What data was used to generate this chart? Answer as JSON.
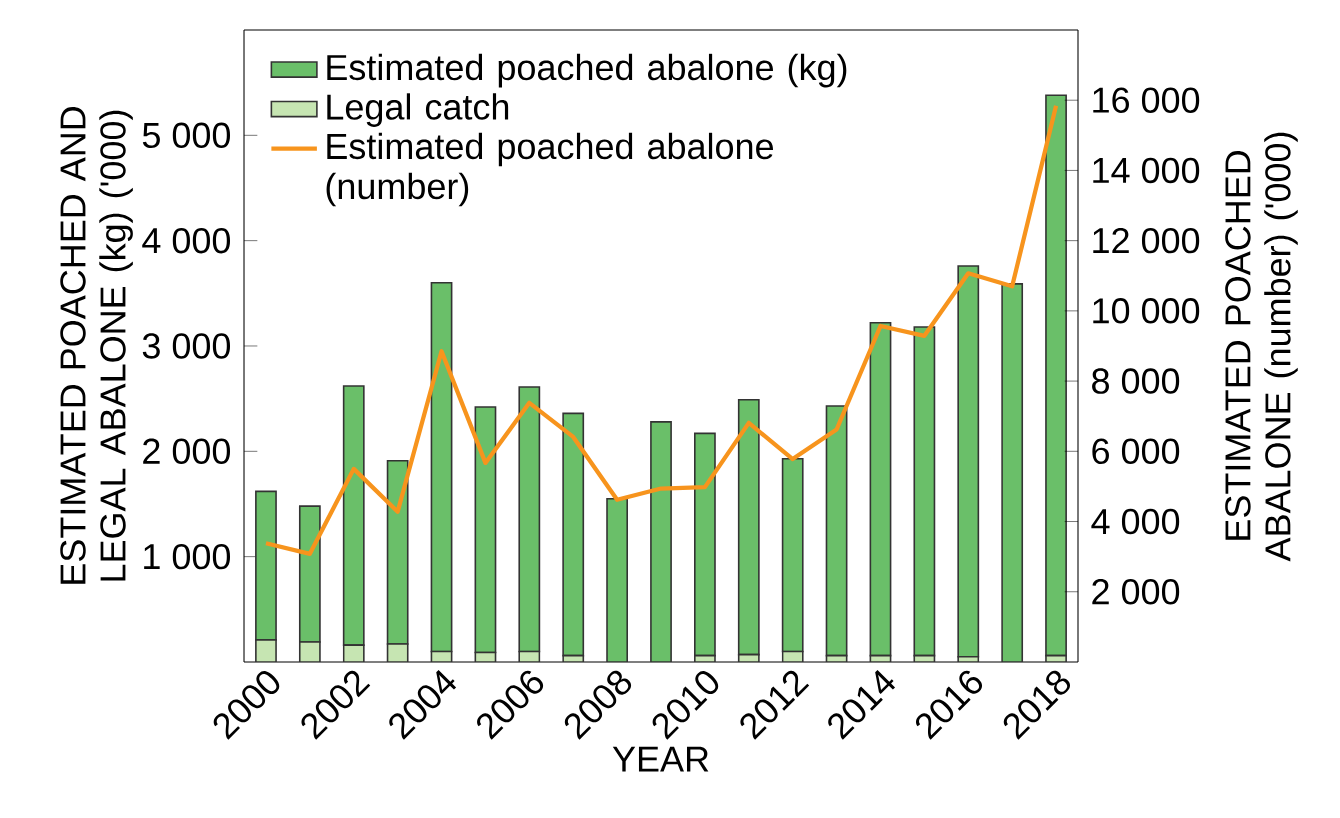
{
  "chart_data": {
    "type": "bar",
    "stacked": true,
    "legend": "top left",
    "xlabel": "YEAR",
    "ylabel": "ESTIMATED POACHED AND LEGAL ABALONE (kg) ('000)",
    "y2label": "ESTIMATED POACHED ABALONE (number) ('000)",
    "categories": [
      "2000",
      null,
      "2002",
      null,
      "2004",
      null,
      "2006",
      null,
      "2008",
      null,
      "2010",
      null,
      "2012",
      null,
      "2014",
      null,
      "2016",
      null,
      "2018"
    ],
    "series": [
      {
        "name": "Legal catch",
        "color": "#c6e5b2",
        "values": [
          210,
          190,
          160,
          170,
          100,
          90,
          100,
          60,
          null,
          null,
          60,
          70,
          100,
          60,
          60,
          60,
          50,
          null,
          60
        ]
      },
      {
        "name": "Estimated poached abalone (kg)",
        "color": "#6abf69",
        "values": [
          1410,
          1290,
          2460,
          1740,
          3500,
          2330,
          2510,
          2300,
          1550,
          2280,
          2110,
          2420,
          1830,
          2370,
          3160,
          3120,
          3710,
          3590,
          5320
        ]
      },
      {
        "name": "Estimated poached abalone (number)",
        "type": "line",
        "axis": "y2",
        "color": "#f7941d",
        "values": [
          3380,
          3080,
          5500,
          4280,
          8850,
          5670,
          7380,
          6410,
          4620,
          4940,
          4980,
          6810,
          5780,
          6620,
          9570,
          9290,
          11070,
          10700,
          15840
        ]
      }
    ],
    "ylim": [
      0,
      6000
    ],
    "yticks": [
      {
        "value": 1000,
        "label": "1 000"
      },
      {
        "value": 2000,
        "label": "2 000"
      },
      {
        "value": 3000,
        "label": "3 000"
      },
      {
        "value": 4000,
        "label": "4 000"
      },
      {
        "value": 5000,
        "label": "5 000"
      }
    ],
    "y2lim": [
      0,
      18000
    ],
    "y2ticks": [
      {
        "value": 2000,
        "label": "2 000"
      },
      {
        "value": 4000,
        "label": "4 000"
      },
      {
        "value": 6000,
        "label": "6 000"
      },
      {
        "value": 8000,
        "label": "8 000"
      },
      {
        "value": 10000,
        "label": "10 000"
      },
      {
        "value": 12000,
        "label": "12 000"
      },
      {
        "value": 14000,
        "label": "14 000"
      },
      {
        "value": 16000,
        "label": "16 000"
      }
    ]
  }
}
